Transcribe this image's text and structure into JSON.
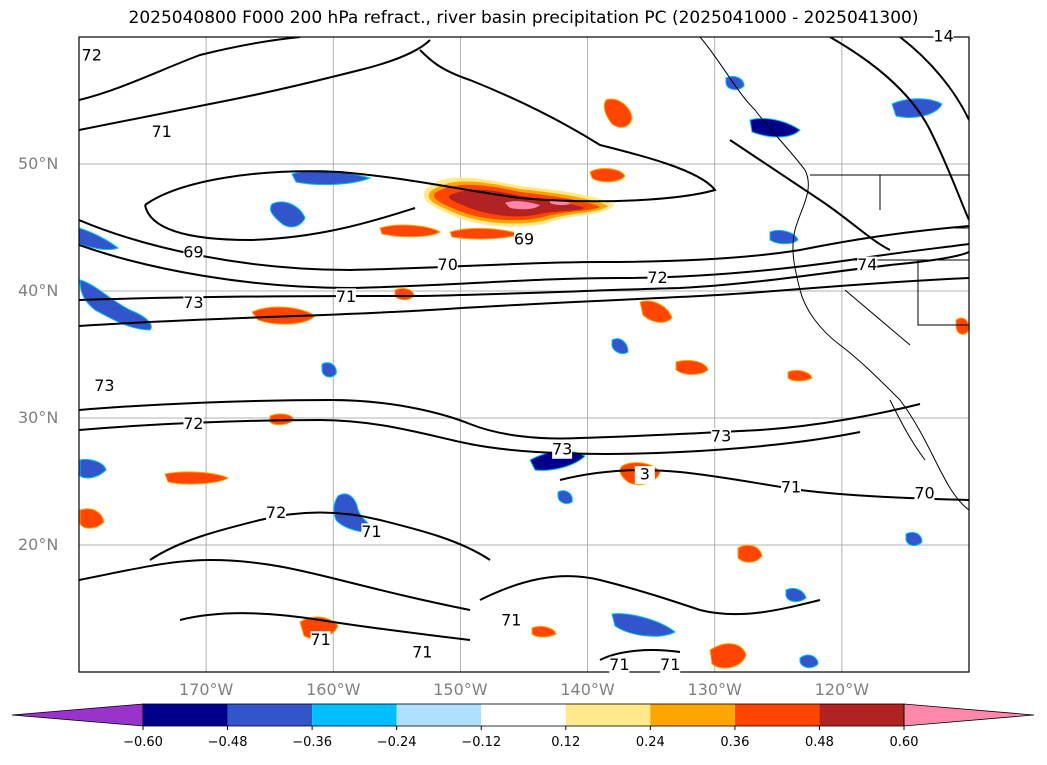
{
  "title": "2025040800 F000 200 hPa refract., river basin precipitation PC (2025041000 - 2025041300)",
  "latitude_labels": [
    {
      "text": "50°N",
      "lat": 50
    },
    {
      "text": "40°N",
      "lat": 40
    },
    {
      "text": "30°N",
      "lat": 30
    },
    {
      "text": "20°N",
      "lat": 20
    }
  ],
  "longitude_labels": [
    {
      "text": "170°W",
      "lon": -170
    },
    {
      "text": "160°W",
      "lon": -160
    },
    {
      "text": "150°W",
      "lon": -150
    },
    {
      "text": "140°W",
      "lon": -140
    },
    {
      "text": "130°W",
      "lon": -130
    },
    {
      "text": "120°W",
      "lon": -120
    }
  ],
  "map_extent": {
    "lon_min": -180,
    "lon_max": -110,
    "lat_min": 10,
    "lat_max": 60
  },
  "colorbar": {
    "colors": [
      "#9933cc",
      "#00008b",
      "#3355cc",
      "#00bfff",
      "#b0e0ff",
      "#ffffff",
      "#ffe98a",
      "#ffa500",
      "#ff4500",
      "#b22222",
      "#ff88aa"
    ],
    "tick_labels": [
      "−0.60",
      "−0.48",
      "−0.36",
      "−0.24",
      "−0.12",
      "0.12",
      "0.24",
      "0.36",
      "0.48",
      "0.60"
    ]
  },
  "contour_labels": [
    {
      "text": "72",
      "lon": -179,
      "lat": 58.5
    },
    {
      "text": "71",
      "lon": -173.5,
      "lat": 52.5
    },
    {
      "text": "14",
      "lon": -112,
      "lat": 60
    },
    {
      "text": "69",
      "lon": -171,
      "lat": 43
    },
    {
      "text": "69",
      "lon": -145,
      "lat": 44
    },
    {
      "text": "70",
      "lon": -151,
      "lat": 42
    },
    {
      "text": "72",
      "lon": -134.5,
      "lat": 41
    },
    {
      "text": "74",
      "lon": -118,
      "lat": 42
    },
    {
      "text": "73",
      "lon": -171,
      "lat": 39
    },
    {
      "text": "71",
      "lon": -159,
      "lat": 39.5
    },
    {
      "text": "73",
      "lon": -178,
      "lat": 32.5
    },
    {
      "text": "72",
      "lon": -171,
      "lat": 29.5
    },
    {
      "text": "73",
      "lon": -129.5,
      "lat": 28.5
    },
    {
      "text": "73",
      "lon": -142,
      "lat": 27.5
    },
    {
      "text": "3",
      "lon": -135.5,
      "lat": 25.5
    },
    {
      "text": "71",
      "lon": -124,
      "lat": 24.5
    },
    {
      "text": "70",
      "lon": -113.5,
      "lat": 24
    },
    {
      "text": "72",
      "lon": -164.5,
      "lat": 22.5
    },
    {
      "text": "71",
      "lon": -157,
      "lat": 21
    },
    {
      "text": "71",
      "lon": -146,
      "lat": 14
    },
    {
      "text": "71",
      "lon": -161,
      "lat": 12.5
    },
    {
      "text": "71",
      "lon": -153,
      "lat": 11.5
    },
    {
      "text": "71",
      "lon": -137.5,
      "lat": 10.5
    },
    {
      "text": "71",
      "lon": -133.5,
      "lat": 10.5
    }
  ]
}
